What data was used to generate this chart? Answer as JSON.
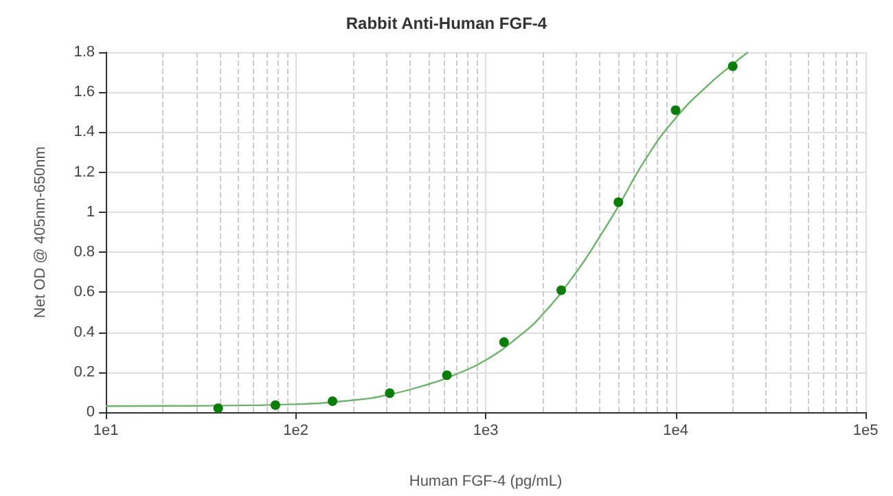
{
  "chart_data": {
    "type": "scatter",
    "title": "Rabbit Anti-Human FGF-4",
    "xlabel": "Human FGF-4 (pg/mL)",
    "ylabel": "Net OD @ 405nm-650nm",
    "series": [
      {
        "color": "#0a7d0a",
        "marker": "circle",
        "x": [
          39.06,
          78.13,
          156.25,
          312.5,
          625,
          1250,
          2500,
          5000,
          10000,
          20000
        ],
        "values": [
          0.02,
          0.035,
          0.055,
          0.095,
          0.185,
          0.35,
          0.61,
          1.05,
          1.51,
          1.73
        ]
      },
      {
        "type": "line",
        "color": "#6ab46a",
        "marker": "none",
        "line_style": "solid",
        "x": [
          10,
          30,
          100,
          200,
          300,
          500,
          700,
          1000,
          1500,
          2000,
          3000,
          4000,
          5000,
          7000,
          10000,
          15000,
          20000,
          24000
        ],
        "values": [
          0.03,
          0.032,
          0.04,
          0.06,
          0.085,
          0.14,
          0.19,
          0.26,
          0.38,
          0.49,
          0.7,
          0.88,
          1.03,
          1.27,
          1.47,
          1.64,
          1.74,
          1.8
        ]
      }
    ],
    "log": "x",
    "xlim": [
      10,
      100000
    ],
    "xticks": [
      {
        "value": 10,
        "label": "1e1"
      },
      {
        "value": 100,
        "label": "1e2"
      },
      {
        "value": 1000,
        "label": "1e3"
      },
      {
        "value": 10000,
        "label": "1e4"
      },
      {
        "value": 100000,
        "label": "1e5"
      }
    ],
    "ylim": [
      0,
      1.8
    ],
    "yticks": [
      0,
      0.2,
      0.4,
      0.6,
      0.8,
      1,
      1.2,
      1.4,
      1.6,
      1.8
    ],
    "grid": true
  }
}
